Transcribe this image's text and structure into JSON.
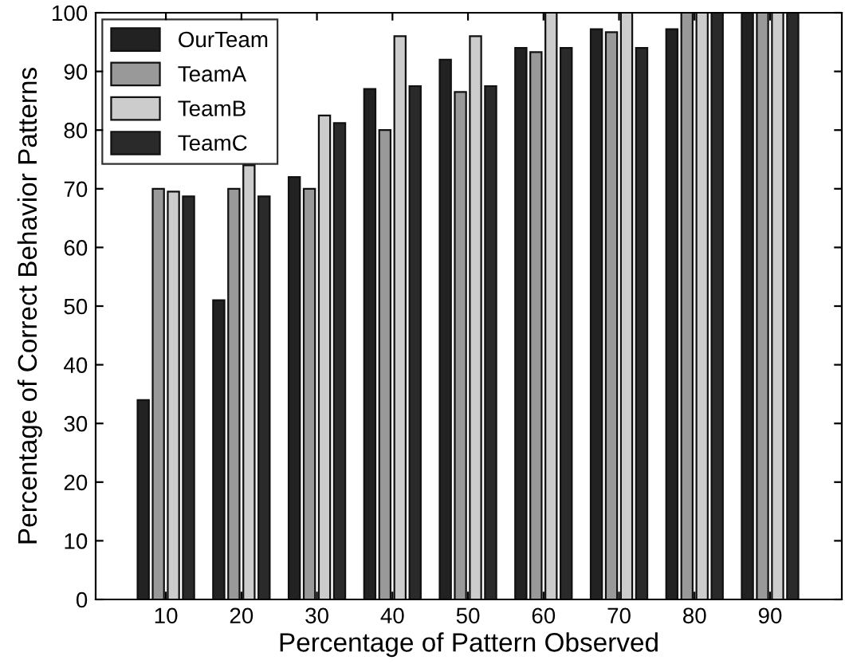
{
  "chart_data": {
    "type": "bar",
    "xlabel": "Percentage of Pattern Observed",
    "ylabel": "Percentage of Correct Behavior Patterns",
    "categories": [
      "10",
      "20",
      "30",
      "40",
      "50",
      "60",
      "70",
      "80",
      "90"
    ],
    "series": [
      {
        "name": "OurTeam",
        "color": "#222222",
        "values": [
          34,
          51,
          72,
          87,
          92,
          94,
          97.2,
          97.2,
          100
        ]
      },
      {
        "name": "TeamA",
        "color": "#999999",
        "values": [
          70,
          70,
          70,
          80,
          86.5,
          93.3,
          96.7,
          100,
          100
        ]
      },
      {
        "name": "TeamB",
        "color": "#cccccc",
        "values": [
          69.5,
          74,
          82.5,
          96,
          96,
          100,
          100,
          100,
          100
        ]
      },
      {
        "name": "TeamC",
        "color": "#2a2a2a",
        "values": [
          68.7,
          68.7,
          81.2,
          87.5,
          87.5,
          94,
          94,
          100,
          100
        ]
      }
    ],
    "ylim": [
      0,
      100
    ],
    "yticks": [
      0,
      10,
      20,
      30,
      40,
      50,
      60,
      70,
      80,
      90,
      100
    ],
    "grid": false,
    "legend": "top left"
  }
}
